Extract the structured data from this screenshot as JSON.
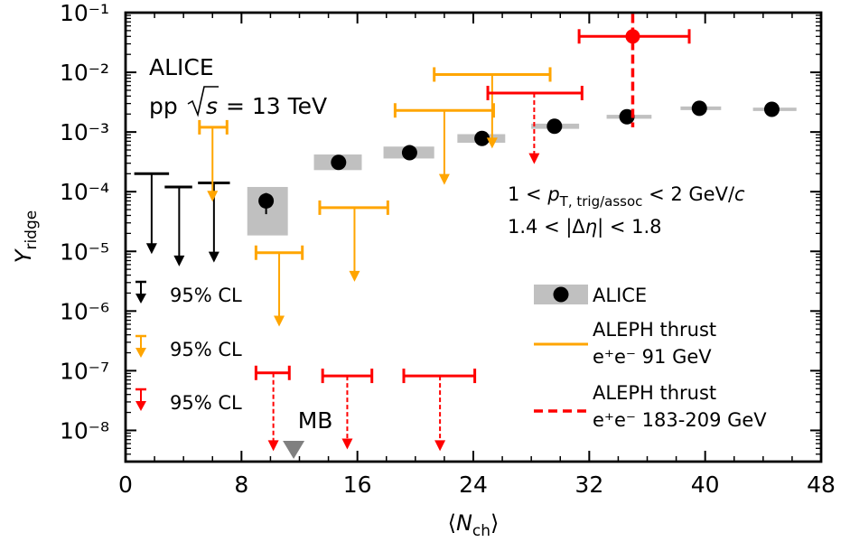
{
  "chart_data": {
    "type": "scatter",
    "xlabel": "⟨N_ch⟩",
    "ylabel": "Y_ridge",
    "xlim": [
      0,
      48
    ],
    "ylim": [
      3e-09,
      0.1
    ],
    "yscale": "log",
    "x_ticks": [
      0,
      8,
      16,
      24,
      32,
      40,
      48
    ],
    "y_ticks": [
      {
        "value": 1e-08,
        "label": "10⁻⁸"
      },
      {
        "value": 1e-07,
        "label": "10⁻⁷"
      },
      {
        "value": 1e-06,
        "label": "10⁻⁶"
      },
      {
        "value": 1e-05,
        "label": "10⁻⁵"
      },
      {
        "value": 0.0001,
        "label": "10⁻⁴"
      },
      {
        "value": 0.001,
        "label": "10⁻³"
      },
      {
        "value": 0.01,
        "label": "10⁻²"
      },
      {
        "value": 0.1,
        "label": "10⁻¹"
      }
    ],
    "annotations": {
      "experiment": "ALICE",
      "system_prefix": "pp",
      "system_energy": "= 13 TeV",
      "pt_cut": "1 < p_T,trig/assoc < 2 GeV/c",
      "eta_cut": "1.4 < |Δη| < 1.8",
      "mb_label": "MB",
      "mb_x": 11.6
    },
    "legend": {
      "placement": "lower-right",
      "entries": [
        {
          "label": "ALICE",
          "color": "#000000"
        },
        {
          "label": "ALEPH thrust",
          "sublabel": "e⁺e⁻ 91 GeV",
          "color": "#FFA500"
        },
        {
          "label": "ALEPH thrust",
          "sublabel": "e⁺e⁻ 183-209 GeV",
          "color": "#FF0000"
        }
      ],
      "cl_entries": [
        {
          "label": "95% CL",
          "color": "#000000"
        },
        {
          "label": "95% CL",
          "color": "#FFA500"
        },
        {
          "label": "95% CL",
          "color": "#FF0000"
        }
      ]
    },
    "series": [
      {
        "name": "ALICE",
        "color": "#000000",
        "syst_color": "#c0c0c0",
        "points": [
          {
            "x": 9.7,
            "y": 7e-05,
            "err_lo": 4.2e-05,
            "err_hi": 9.5e-05,
            "syst_x": [
              8.4,
              11.2
            ],
            "syst_y": [
              1.85e-05,
              0.00012
            ]
          },
          {
            "x": 14.7,
            "y": 0.00031,
            "syst_x": [
              13.0,
              16.3
            ],
            "syst_y": [
              0.00023,
              0.00042
            ]
          },
          {
            "x": 19.6,
            "y": 0.00045,
            "syst_x": [
              17.8,
              21.3
            ],
            "syst_y": [
              0.00036,
              0.00057
            ]
          },
          {
            "x": 24.6,
            "y": 0.00078,
            "syst_x": [
              22.9,
              26.2
            ],
            "syst_y": [
              0.00066,
              0.00092
            ]
          },
          {
            "x": 29.6,
            "y": 0.00125,
            "syst_x": [
              28.0,
              31.3
            ],
            "syst_y": [
              0.00113,
              0.00138
            ]
          },
          {
            "x": 34.6,
            "y": 0.0018,
            "syst_x": [
              33.2,
              36.3
            ],
            "syst_y": [
              0.00167,
              0.00194
            ]
          },
          {
            "x": 39.6,
            "y": 0.0025,
            "syst_x": [
              38.3,
              41.1
            ],
            "syst_y": [
              0.00233,
              0.00268
            ]
          },
          {
            "x": 44.6,
            "y": 0.0024,
            "syst_x": [
              43.3,
              46.3
            ],
            "syst_y": [
              0.00225,
              0.00256
            ]
          }
        ]
      },
      {
        "name": "ALICE 95% CL upper limits",
        "color": "#000000",
        "limits": [
          {
            "x": 1.8,
            "x_lo": 0.6,
            "x_hi": 3.0,
            "y": 0.0002,
            "arrow_to": 9e-06
          },
          {
            "x": 3.7,
            "x_lo": 2.7,
            "x_hi": 4.6,
            "y": 0.00012,
            "arrow_to": 5.6e-06
          },
          {
            "x": 6.1,
            "x_lo": 5.0,
            "x_hi": 7.2,
            "y": 0.00014,
            "arrow_to": 6.5e-06
          }
        ]
      },
      {
        "name": "ALEPH thrust e⁺e⁻ 91 GeV",
        "color": "#FFA500",
        "limits": [
          {
            "x": 6.0,
            "x_lo": 5.1,
            "x_hi": 7.0,
            "y": 0.0012,
            "arrow_to": 6.8e-05
          },
          {
            "x": 10.6,
            "x_lo": 9.0,
            "x_hi": 12.2,
            "y": 9.5e-06,
            "arrow_to": 5.5e-07
          },
          {
            "x": 15.8,
            "x_lo": 13.4,
            "x_hi": 18.1,
            "y": 5.4e-05,
            "arrow_to": 3.1e-06
          },
          {
            "x": 22.0,
            "x_lo": 18.6,
            "x_hi": 25.4,
            "y": 0.0023,
            "arrow_to": 0.00013
          },
          {
            "x": 25.3,
            "x_lo": 21.3,
            "x_hi": 29.3,
            "y": 0.0092,
            "arrow_to": 0.00053
          }
        ]
      },
      {
        "name": "ALEPH thrust e⁺e⁻ 183-209 GeV",
        "color": "#FF0000",
        "points": [
          {
            "x": 35.0,
            "y": 0.04,
            "x_lo": 31.3,
            "x_hi": 38.9,
            "y_lo": 0.0012,
            "y_hi": 0.095
          }
        ],
        "limits": [
          {
            "x": 10.2,
            "x_lo": 9.0,
            "x_hi": 11.3,
            "y": 9.2e-08,
            "arrow_to": 4.5e-09
          },
          {
            "x": 15.3,
            "x_lo": 13.6,
            "x_hi": 17.0,
            "y": 8.2e-08,
            "arrow_to": 4.8e-09
          },
          {
            "x": 21.7,
            "x_lo": 19.2,
            "x_hi": 24.1,
            "y": 8.2e-08,
            "arrow_to": 4.5e-09
          },
          {
            "x": 28.2,
            "x_lo": 25.0,
            "x_hi": 31.5,
            "y": 0.0045,
            "arrow_to": 0.00029
          }
        ]
      }
    ]
  }
}
